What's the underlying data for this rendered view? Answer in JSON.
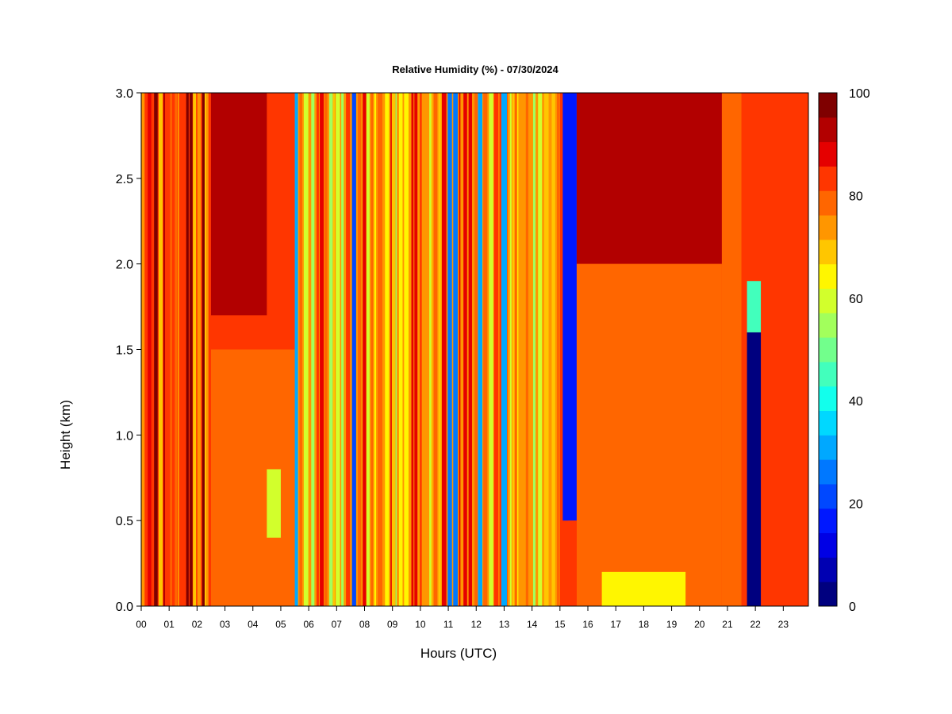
{
  "chart_data": {
    "type": "heatmap",
    "title": "Relative Humidity (%) - 07/30/2024",
    "xlabel": "Hours (UTC)",
    "ylabel": "Height (km)",
    "x_ticks": [
      "00",
      "01",
      "02",
      "03",
      "04",
      "05",
      "06",
      "07",
      "08",
      "09",
      "10",
      "11",
      "12",
      "13",
      "14",
      "15",
      "16",
      "17",
      "18",
      "19",
      "20",
      "21",
      "22",
      "23"
    ],
    "xlim": [
      0,
      23.9
    ],
    "y_ticks": [
      "0.0",
      "0.5",
      "1.0",
      "1.5",
      "2.0",
      "2.5",
      "3.0"
    ],
    "ylim": [
      0,
      3
    ],
    "colorbar": {
      "ticks": [
        "0",
        "20",
        "40",
        "60",
        "80",
        "100"
      ],
      "range": [
        0,
        100
      ],
      "step": 5,
      "colors": [
        "#00007F",
        "#0000B2",
        "#0000E5",
        "#0018FF",
        "#0048FF",
        "#0078FF",
        "#00A8FF",
        "#00D8FF",
        "#12FFEC",
        "#42FFBC",
        "#72FF8C",
        "#A2FF5C",
        "#D2FF2C",
        "#FFF600",
        "#FFC600",
        "#FF9600",
        "#FF6600",
        "#FF3600",
        "#E50000",
        "#B20000",
        "#7F0000"
      ]
    },
    "grid": false,
    "humidity_regions": [
      {
        "hours": [
          0.0,
          2.5
        ],
        "height_km": [
          0.0,
          3.0
        ],
        "rh": 87,
        "note": "variable, many thin drier streaks"
      },
      {
        "hours": [
          2.5,
          4.5
        ],
        "height_km": [
          1.7,
          3.0
        ],
        "rh": 98
      },
      {
        "hours": [
          2.5,
          5.5
        ],
        "height_km": [
          0.0,
          1.5
        ],
        "rh": 80
      },
      {
        "hours": [
          4.5,
          5.0
        ],
        "height_km": [
          0.4,
          0.8
        ],
        "rh": 63
      },
      {
        "hours": [
          5.5,
          15.0
        ],
        "height_km": [
          0.0,
          3.0
        ],
        "rh": 75,
        "note": "highly variable streaks 15-100"
      },
      {
        "hours": [
          12.9,
          13.1
        ],
        "height_km": [
          0.0,
          3.0
        ],
        "rh": 30
      },
      {
        "hours": [
          15.1,
          15.6
        ],
        "height_km": [
          0.5,
          3.0
        ],
        "rh": 15
      },
      {
        "hours": [
          15.3,
          15.6
        ],
        "height_km": [
          0.0,
          0.5
        ],
        "rh": 88
      },
      {
        "hours": [
          15.6,
          20.8
        ],
        "height_km": [
          2.0,
          3.0
        ],
        "rh": 97
      },
      {
        "hours": [
          15.6,
          20.8
        ],
        "height_km": [
          0.0,
          2.0
        ],
        "rh": 84
      },
      {
        "hours": [
          16.5,
          19.5
        ],
        "height_km": [
          0.0,
          0.2
        ],
        "rh": 65
      },
      {
        "hours": [
          20.8,
          21.5
        ],
        "height_km": [
          0.0,
          3.0
        ],
        "rh": 82
      },
      {
        "hours": [
          21.7,
          22.2
        ],
        "height_km": [
          0.0,
          1.6
        ],
        "rh": 3
      },
      {
        "hours": [
          21.7,
          22.2
        ],
        "height_km": [
          1.6,
          1.9
        ],
        "rh": 45
      },
      {
        "hours": [
          22.2,
          23.9
        ],
        "height_km": [
          0.0,
          3.0
        ],
        "rh": 88
      }
    ]
  }
}
